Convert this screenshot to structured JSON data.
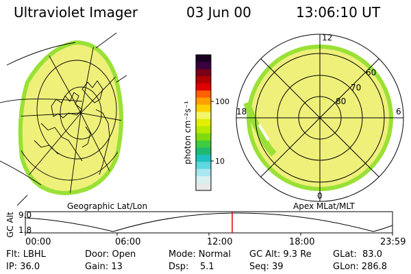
{
  "header": {
    "instrument": "Ultraviolet Imager",
    "date": "03 Jun 00",
    "time": "13:06:10 UT"
  },
  "colorbar": {
    "unit_label": "photon cm⁻²s⁻¹",
    "tick_100": "100",
    "tick_10": "10",
    "colors_top_to_bottom": [
      "#1a0020",
      "#3a0040",
      "#7a0018",
      "#b00000",
      "#e00000",
      "#ff6000",
      "#ffa000",
      "#ffd000",
      "#f4f56a",
      "#e0f000",
      "#b8ea00",
      "#80dc10",
      "#40cc40",
      "#20b870",
      "#20c0c0",
      "#60d8e0",
      "#a8e8f0",
      "#d8f0f0",
      "#e8e8e8"
    ]
  },
  "left_panel": {
    "label": "Geographic Lat/Lon",
    "fill_color": "#eef07a",
    "edge_color": "#9ae036"
  },
  "right_panel": {
    "label": "Apex MLat/MLT",
    "mlt_12": "12",
    "mlt_18": "18",
    "mlt_6": "6",
    "mlt_0": "0",
    "lat_60": "60",
    "lat_70": "70",
    "lat_80": "80",
    "fill_color": "#eef07a",
    "edge_color": "#9ae036"
  },
  "altitude_plot": {
    "ylabel": "GC Alt",
    "ytick_top": "9.0",
    "ytick_bottom": "1.8",
    "xticks": [
      "00:00",
      "06:00",
      "12:00",
      "18:00",
      "23:59"
    ],
    "marker_color": "#e00000"
  },
  "status": {
    "flt": "Flt: LBHL",
    "ip": "IP: 36.0",
    "door": "Door: Open",
    "gain": "Gain: 13",
    "mode": "Mode: Normal",
    "dsp": "Dsp:    5.1",
    "gcalt": "GC Alt: 9.3 Re",
    "seq": "Seq: 39",
    "glat": "GLat:  83.0",
    "glon": "GLon: 286.8"
  }
}
